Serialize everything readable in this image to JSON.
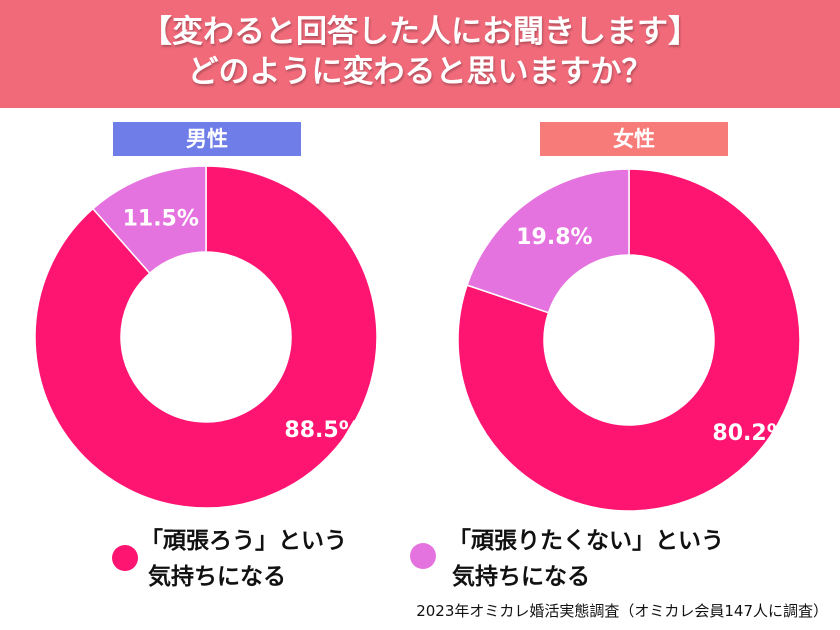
{
  "header": {
    "line1": "【変わると回答した人にお聞きします】",
    "line2": "どのように変わると思いますか？"
  },
  "colors": {
    "header": "#f06a7a",
    "male_label": "#6f7de8",
    "female_label": "#f77b78",
    "series_a": "#fe1572",
    "series_b": "#e573df"
  },
  "chart_data": [
    {
      "type": "pie",
      "title": "男性",
      "categories": [
        "「頑張ろう」という気持ちになる",
        "「頑張りたくない」という気持ちになる"
      ],
      "values": [
        88.5,
        11.5
      ],
      "labels": [
        "88.5%",
        "11.5%"
      ]
    },
    {
      "type": "pie",
      "title": "女性",
      "categories": [
        "「頑張ろう」という気持ちになる",
        "「頑張りたくない」という気持ちになる"
      ],
      "values": [
        80.2,
        19.8
      ],
      "labels": [
        "80.2%",
        "19.8%"
      ]
    }
  ],
  "legend": [
    {
      "line1": "「頑張ろう」という",
      "line2": "気持ちになる"
    },
    {
      "line1": "「頑張りたくない」という",
      "line2": "気持ちになる"
    }
  ],
  "footer": "2023年オミカレ婚活実態調査（オミカレ会員147人に調査）"
}
